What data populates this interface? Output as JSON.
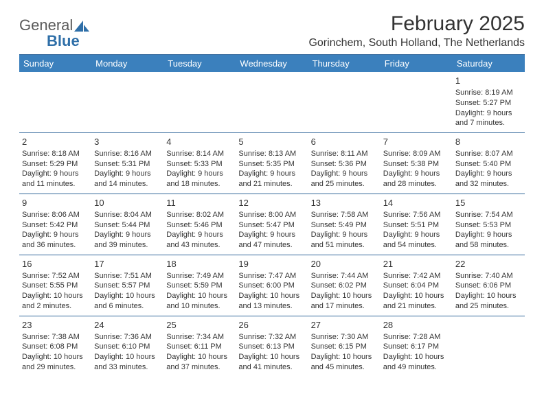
{
  "brand": {
    "text_gray": "General",
    "text_blue": "Blue"
  },
  "title": "February 2025",
  "location": "Gorinchem, South Holland, The Netherlands",
  "colors": {
    "header_bg": "#3b80bd",
    "header_text": "#ffffff",
    "rule": "#2f6599",
    "body_text": "#333333",
    "logo_blue": "#2f6fa8"
  },
  "typography": {
    "title_fontsize": 30,
    "location_fontsize": 16,
    "dayhead_fontsize": 13,
    "cell_fontsize": 11
  },
  "day_headers": [
    "Sunday",
    "Monday",
    "Tuesday",
    "Wednesday",
    "Thursday",
    "Friday",
    "Saturday"
  ],
  "weeks": [
    [
      null,
      null,
      null,
      null,
      null,
      null,
      {
        "n": "1",
        "sunrise": "Sunrise: 8:19 AM",
        "sunset": "Sunset: 5:27 PM",
        "daylight": "Daylight: 9 hours and 7 minutes."
      }
    ],
    [
      {
        "n": "2",
        "sunrise": "Sunrise: 8:18 AM",
        "sunset": "Sunset: 5:29 PM",
        "daylight": "Daylight: 9 hours and 11 minutes."
      },
      {
        "n": "3",
        "sunrise": "Sunrise: 8:16 AM",
        "sunset": "Sunset: 5:31 PM",
        "daylight": "Daylight: 9 hours and 14 minutes."
      },
      {
        "n": "4",
        "sunrise": "Sunrise: 8:14 AM",
        "sunset": "Sunset: 5:33 PM",
        "daylight": "Daylight: 9 hours and 18 minutes."
      },
      {
        "n": "5",
        "sunrise": "Sunrise: 8:13 AM",
        "sunset": "Sunset: 5:35 PM",
        "daylight": "Daylight: 9 hours and 21 minutes."
      },
      {
        "n": "6",
        "sunrise": "Sunrise: 8:11 AM",
        "sunset": "Sunset: 5:36 PM",
        "daylight": "Daylight: 9 hours and 25 minutes."
      },
      {
        "n": "7",
        "sunrise": "Sunrise: 8:09 AM",
        "sunset": "Sunset: 5:38 PM",
        "daylight": "Daylight: 9 hours and 28 minutes."
      },
      {
        "n": "8",
        "sunrise": "Sunrise: 8:07 AM",
        "sunset": "Sunset: 5:40 PM",
        "daylight": "Daylight: 9 hours and 32 minutes."
      }
    ],
    [
      {
        "n": "9",
        "sunrise": "Sunrise: 8:06 AM",
        "sunset": "Sunset: 5:42 PM",
        "daylight": "Daylight: 9 hours and 36 minutes."
      },
      {
        "n": "10",
        "sunrise": "Sunrise: 8:04 AM",
        "sunset": "Sunset: 5:44 PM",
        "daylight": "Daylight: 9 hours and 39 minutes."
      },
      {
        "n": "11",
        "sunrise": "Sunrise: 8:02 AM",
        "sunset": "Sunset: 5:46 PM",
        "daylight": "Daylight: 9 hours and 43 minutes."
      },
      {
        "n": "12",
        "sunrise": "Sunrise: 8:00 AM",
        "sunset": "Sunset: 5:47 PM",
        "daylight": "Daylight: 9 hours and 47 minutes."
      },
      {
        "n": "13",
        "sunrise": "Sunrise: 7:58 AM",
        "sunset": "Sunset: 5:49 PM",
        "daylight": "Daylight: 9 hours and 51 minutes."
      },
      {
        "n": "14",
        "sunrise": "Sunrise: 7:56 AM",
        "sunset": "Sunset: 5:51 PM",
        "daylight": "Daylight: 9 hours and 54 minutes."
      },
      {
        "n": "15",
        "sunrise": "Sunrise: 7:54 AM",
        "sunset": "Sunset: 5:53 PM",
        "daylight": "Daylight: 9 hours and 58 minutes."
      }
    ],
    [
      {
        "n": "16",
        "sunrise": "Sunrise: 7:52 AM",
        "sunset": "Sunset: 5:55 PM",
        "daylight": "Daylight: 10 hours and 2 minutes."
      },
      {
        "n": "17",
        "sunrise": "Sunrise: 7:51 AM",
        "sunset": "Sunset: 5:57 PM",
        "daylight": "Daylight: 10 hours and 6 minutes."
      },
      {
        "n": "18",
        "sunrise": "Sunrise: 7:49 AM",
        "sunset": "Sunset: 5:59 PM",
        "daylight": "Daylight: 10 hours and 10 minutes."
      },
      {
        "n": "19",
        "sunrise": "Sunrise: 7:47 AM",
        "sunset": "Sunset: 6:00 PM",
        "daylight": "Daylight: 10 hours and 13 minutes."
      },
      {
        "n": "20",
        "sunrise": "Sunrise: 7:44 AM",
        "sunset": "Sunset: 6:02 PM",
        "daylight": "Daylight: 10 hours and 17 minutes."
      },
      {
        "n": "21",
        "sunrise": "Sunrise: 7:42 AM",
        "sunset": "Sunset: 6:04 PM",
        "daylight": "Daylight: 10 hours and 21 minutes."
      },
      {
        "n": "22",
        "sunrise": "Sunrise: 7:40 AM",
        "sunset": "Sunset: 6:06 PM",
        "daylight": "Daylight: 10 hours and 25 minutes."
      }
    ],
    [
      {
        "n": "23",
        "sunrise": "Sunrise: 7:38 AM",
        "sunset": "Sunset: 6:08 PM",
        "daylight": "Daylight: 10 hours and 29 minutes."
      },
      {
        "n": "24",
        "sunrise": "Sunrise: 7:36 AM",
        "sunset": "Sunset: 6:10 PM",
        "daylight": "Daylight: 10 hours and 33 minutes."
      },
      {
        "n": "25",
        "sunrise": "Sunrise: 7:34 AM",
        "sunset": "Sunset: 6:11 PM",
        "daylight": "Daylight: 10 hours and 37 minutes."
      },
      {
        "n": "26",
        "sunrise": "Sunrise: 7:32 AM",
        "sunset": "Sunset: 6:13 PM",
        "daylight": "Daylight: 10 hours and 41 minutes."
      },
      {
        "n": "27",
        "sunrise": "Sunrise: 7:30 AM",
        "sunset": "Sunset: 6:15 PM",
        "daylight": "Daylight: 10 hours and 45 minutes."
      },
      {
        "n": "28",
        "sunrise": "Sunrise: 7:28 AM",
        "sunset": "Sunset: 6:17 PM",
        "daylight": "Daylight: 10 hours and 49 minutes."
      },
      null
    ]
  ]
}
